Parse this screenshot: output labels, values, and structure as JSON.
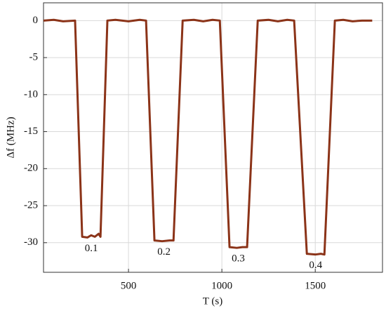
{
  "chart_data": {
    "type": "line",
    "x_label": "T (s)",
    "y_label": "Δf (MHz)",
    "x": [
      45,
      100,
      150,
      214,
      252,
      280,
      300,
      320,
      340,
      350,
      387,
      430,
      500,
      560,
      594,
      639,
      680,
      720,
      741,
      790,
      850,
      900,
      950,
      989,
      1041,
      1080,
      1110,
      1135,
      1192,
      1250,
      1300,
      1350,
      1387,
      1455,
      1500,
      1530,
      1549,
      1605,
      1650,
      1700,
      1750,
      1805
    ],
    "series": [
      {
        "name": "Δf",
        "color": "#8b3318",
        "values": [
          0,
          0.1,
          -0.1,
          0,
          -29.2,
          -29.3,
          -29.0,
          -29.2,
          -28.8,
          -29.2,
          0,
          0.1,
          -0.1,
          0.1,
          0,
          -29.7,
          -29.8,
          -29.7,
          -29.7,
          0,
          0.1,
          -0.1,
          0.1,
          0,
          -30.6,
          -30.7,
          -30.6,
          -30.6,
          0,
          0.1,
          -0.1,
          0.1,
          0,
          -31.5,
          -31.6,
          -31.5,
          -31.6,
          0,
          0.1,
          -0.1,
          0,
          0
        ]
      }
    ],
    "annotations": [
      "0.1",
      "0.2",
      "0.3",
      "0.4"
    ],
    "xlim": [
      45,
      1860
    ],
    "ylim": [
      -34,
      2.4
    ],
    "xticks": [
      500,
      1000,
      1500
    ],
    "yticks": [
      0,
      -5,
      -10,
      -15,
      -20,
      -25,
      -30
    ],
    "grid": true
  }
}
